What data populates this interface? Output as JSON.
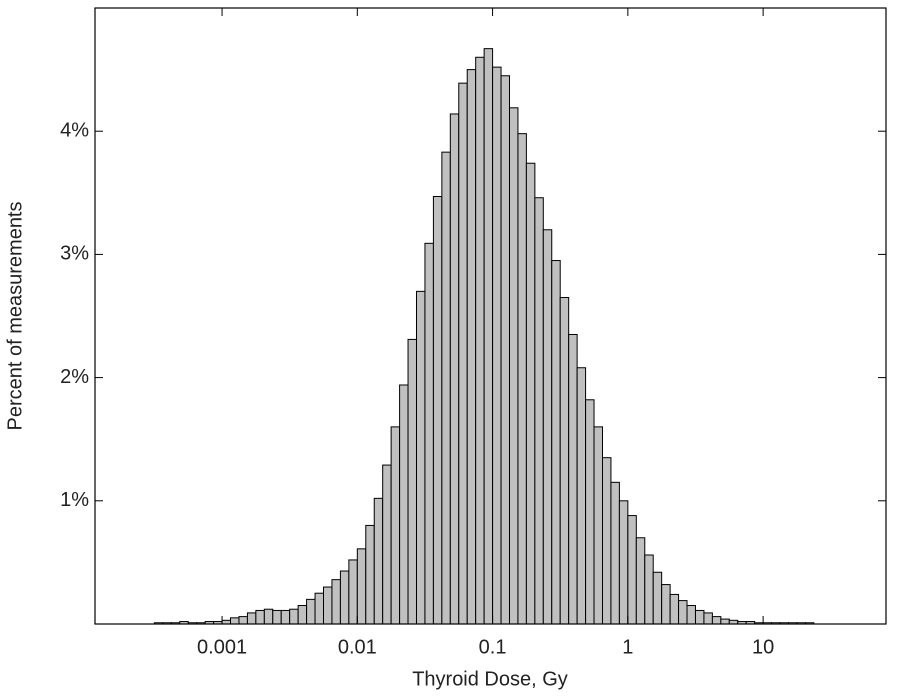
{
  "chart_data": {
    "type": "histogram",
    "xlabel": "Thyroid Dose, Gy",
    "ylabel": "Percent of measurements",
    "xscale": "log",
    "color": "#c0c0c0",
    "edgecolor": "#000000",
    "xlim": [
      0.000115,
      81
    ],
    "ylim": [
      0,
      5
    ],
    "xticks": [
      0.001,
      0.01,
      0.1,
      1,
      10
    ],
    "yticks": [
      {
        "value": 1,
        "label": "1%"
      },
      {
        "value": 2,
        "label": "2%"
      },
      {
        "value": 3,
        "label": "3%"
      },
      {
        "value": 4,
        "label": "4%"
      }
    ],
    "bins": [
      0.000316,
      0.000365,
      0.000422,
      0.000487,
      0.000562,
      0.000649,
      0.00075,
      0.000866,
      0.001,
      0.001155,
      0.001334,
      0.00154,
      0.001778,
      0.002054,
      0.002371,
      0.002738,
      0.003162,
      0.003652,
      0.004217,
      0.00487,
      0.005623,
      0.006494,
      0.007499,
      0.00866,
      0.01,
      0.01155,
      0.01334,
      0.0154,
      0.01778,
      0.02054,
      0.02371,
      0.02738,
      0.03162,
      0.03652,
      0.04217,
      0.0487,
      0.05623,
      0.06494,
      0.07499,
      0.0866,
      0.1,
      0.1155,
      0.1334,
      0.154,
      0.1778,
      0.2054,
      0.2371,
      0.2738,
      0.3162,
      0.3652,
      0.4217,
      0.487,
      0.5623,
      0.6494,
      0.7499,
      0.866,
      1,
      1.155,
      1.334,
      1.54,
      1.778,
      2.054,
      2.371,
      2.738,
      3.162,
      3.652,
      4.217,
      4.87,
      5.623,
      6.494,
      7.499,
      8.66,
      10,
      11.55,
      13.34,
      15.4,
      17.78,
      20.54,
      23.71
    ],
    "values": [
      0.01,
      0.01,
      0.01,
      0.02,
      0.01,
      0.01,
      0.02,
      0.02,
      0.03,
      0.05,
      0.06,
      0.09,
      0.11,
      0.12,
      0.11,
      0.11,
      0.12,
      0.15,
      0.2,
      0.25,
      0.3,
      0.36,
      0.43,
      0.52,
      0.61,
      0.8,
      1.02,
      1.29,
      1.6,
      1.94,
      2.31,
      2.7,
      3.09,
      3.47,
      3.83,
      4.14,
      4.39,
      4.5,
      4.6,
      4.67,
      4.52,
      4.45,
      4.19,
      3.98,
      3.74,
      3.46,
      3.2,
      2.95,
      2.65,
      2.35,
      2.08,
      1.82,
      1.6,
      1.35,
      1.15,
      1.0,
      0.88,
      0.7,
      0.56,
      0.42,
      0.32,
      0.24,
      0.19,
      0.15,
      0.11,
      0.09,
      0.06,
      0.04,
      0.03,
      0.02,
      0.02,
      0.01,
      0.01,
      0.01,
      0.01,
      0.01,
      0.01,
      0.01
    ]
  }
}
